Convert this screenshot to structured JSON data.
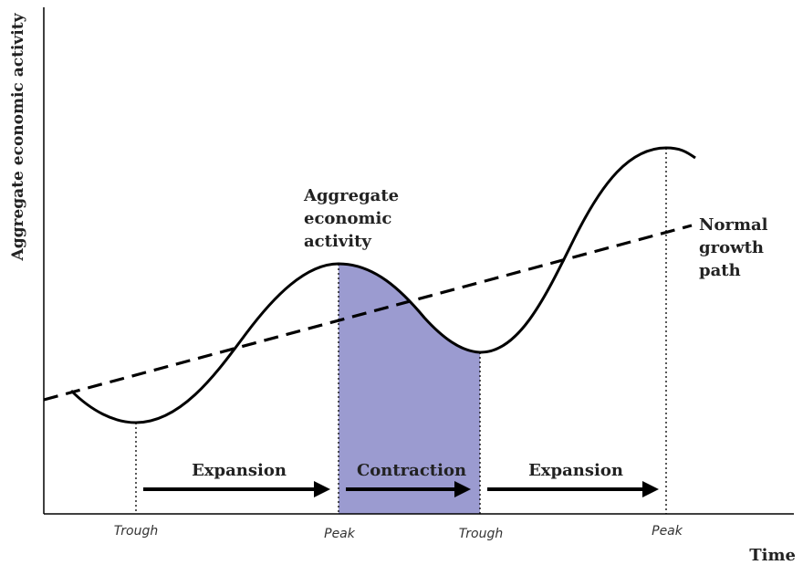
{
  "diagram": {
    "y_axis_label": "Aggregate economic activity",
    "x_axis_label": "Time",
    "curve_label": [
      "Aggregate",
      "economic",
      "activity"
    ],
    "trend_label": [
      "Normal",
      "growth",
      "path"
    ],
    "phases": [
      {
        "label": "Expansion"
      },
      {
        "label": "Contraction"
      },
      {
        "label": "Expansion"
      }
    ],
    "turning_points": [
      {
        "label": "Trough"
      },
      {
        "label": "Peak"
      },
      {
        "label": "Trough"
      },
      {
        "label": "Peak"
      }
    ],
    "colors": {
      "contraction_fill": "#9b9bd0",
      "line": "#000000"
    }
  }
}
